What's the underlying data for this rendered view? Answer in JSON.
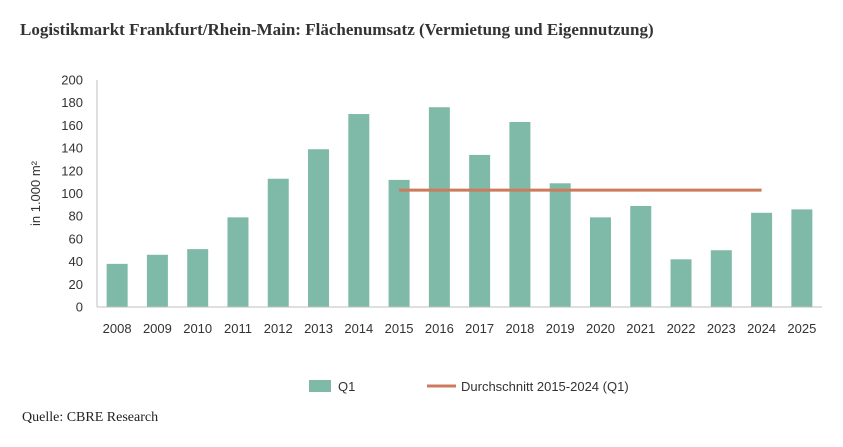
{
  "title": "Logistikmarkt Frankfurt/Rhein-Main: Flächenumsatz (Vermietung und Eigennutzung)",
  "source": "Quelle: CBRE Research",
  "chart_data": {
    "type": "bar",
    "title": "Logistikmarkt Frankfurt/Rhein-Main: Flächenumsatz (Vermietung und Eigennutzung)",
    "xlabel": "",
    "ylabel": "in 1.000 m²",
    "ylim": [
      0,
      200
    ],
    "yticks": [
      0,
      20,
      40,
      60,
      80,
      100,
      120,
      140,
      160,
      180,
      200
    ],
    "grid": false,
    "legend_position": "bottom",
    "categories": [
      "2008",
      "2009",
      "2010",
      "2011",
      "2012",
      "2013",
      "2014",
      "2015",
      "2016",
      "2017",
      "2018",
      "2019",
      "2020",
      "2021",
      "2022",
      "2023",
      "2024",
      "2025"
    ],
    "series": [
      {
        "name": "Q1",
        "type": "bar",
        "color": "#7fbaa9",
        "values": [
          38,
          46,
          51,
          79,
          113,
          139,
          170,
          112,
          176,
          134,
          163,
          109,
          79,
          89,
          42,
          50,
          83,
          86
        ]
      },
      {
        "name": "Durchschnitt 2015-2024 (Q1)",
        "type": "line",
        "color": "#cd7b5e",
        "x_start": "2015",
        "x_end": "2024",
        "value": 103
      }
    ]
  }
}
